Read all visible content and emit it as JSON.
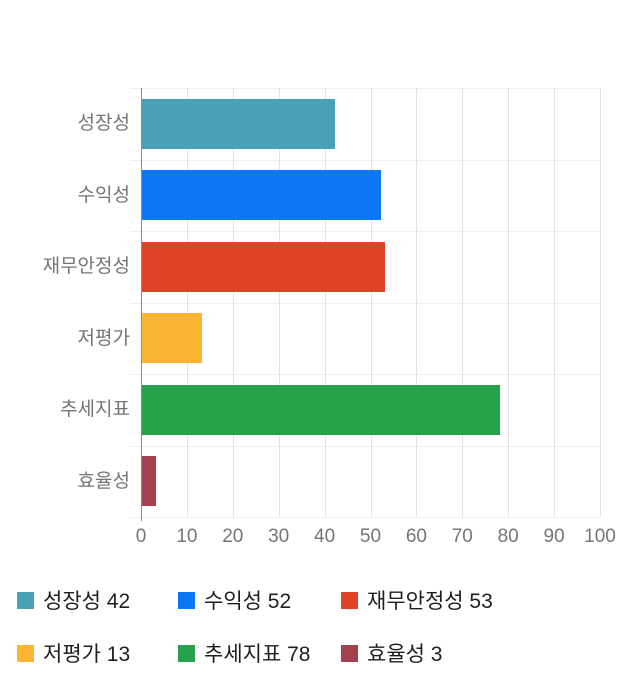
{
  "chart_data": {
    "type": "bar",
    "orientation": "horizontal",
    "title": "",
    "categories": [
      "성장성",
      "수익성",
      "재무안정성",
      "저평가",
      "추세지표",
      "효율성"
    ],
    "values": [
      42,
      52,
      53,
      13,
      78,
      3
    ],
    "colors": [
      "#4AA0B5",
      "#0C78F5",
      "#E04226",
      "#FBB434",
      "#27A24B",
      "#A6404F"
    ],
    "xlim": [
      0,
      100
    ],
    "x_ticks": [
      0,
      10,
      20,
      30,
      40,
      50,
      60,
      70,
      80,
      90,
      100
    ],
    "grid": true,
    "legend_position": "bottom",
    "legend_items": [
      {
        "label": "성장성 42",
        "color": "#4AA0B5"
      },
      {
        "label": "수익성 52",
        "color": "#0C78F5"
      },
      {
        "label": "재무안정성 53",
        "color": "#E04226"
      },
      {
        "label": "저평가 13",
        "color": "#FBB434"
      },
      {
        "label": "추세지표 78",
        "color": "#27A24B"
      },
      {
        "label": "효율성 3",
        "color": "#A6404F"
      }
    ],
    "axis_text_color": "#757575",
    "legend_text_color": "#1f1f1f"
  }
}
